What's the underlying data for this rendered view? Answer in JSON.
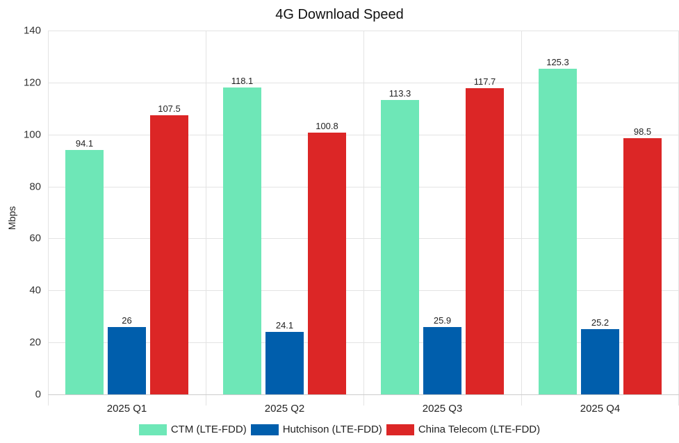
{
  "chart_data": {
    "type": "bar",
    "title": "4G Download Speed",
    "xlabel": "",
    "ylabel": "Mbps",
    "ylim": [
      0,
      140
    ],
    "yticks": [
      0,
      20,
      40,
      60,
      80,
      100,
      120,
      140
    ],
    "grid": true,
    "legend_position": "bottom",
    "categories": [
      "2025 Q1",
      "2025 Q2",
      "2025 Q3",
      "2025 Q4"
    ],
    "series": [
      {
        "name": "CTM (LTE-FDD)",
        "color": "#6ee7b7",
        "values": [
          94.1,
          118.1,
          113.3,
          125.3
        ],
        "labels": [
          "94.1",
          "118.1",
          "113.3",
          "125.3"
        ]
      },
      {
        "name": "Hutchison (LTE-FDD)",
        "color": "#005eac",
        "values": [
          26,
          24.1,
          25.9,
          25.2
        ],
        "labels": [
          "26",
          "24.1",
          "25.9",
          "25.2"
        ]
      },
      {
        "name": "China Telecom (LTE-FDD)",
        "color": "#dc2626",
        "values": [
          107.5,
          100.8,
          117.7,
          98.5
        ],
        "labels": [
          "107.5",
          "100.8",
          "117.7",
          "98.5"
        ]
      }
    ]
  }
}
